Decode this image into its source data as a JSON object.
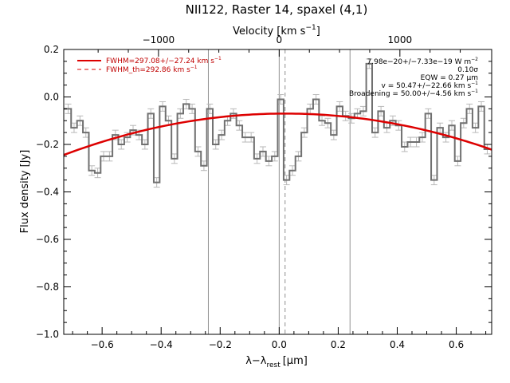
{
  "title": "NII122, Raster 14, spaxel (4,1)",
  "chart_data": {
    "type": "line",
    "title": "NII122, Raster 14, spaxel (4,1)",
    "xlabel_main": "λ−λ",
    "xlabel_sub": "rest",
    "xlabel_unit": "[μm]",
    "ylabel": "Flux density [Jy]",
    "top_axis_label_main": "Velocity [km s",
    "top_axis_label_sup": "−1",
    "top_axis_label_end": "]",
    "xlim": [
      -0.73,
      0.72
    ],
    "ylim": [
      -1.0,
      0.2
    ],
    "x_ticks": [
      -0.6,
      -0.4,
      -0.2,
      0.0,
      0.2,
      0.4,
      0.6
    ],
    "x_tick_labels": [
      "−0.6",
      "−0.4",
      "−0.2",
      "0.0",
      "0.2",
      "0.4",
      "0.6"
    ],
    "y_ticks": [
      -1.0,
      -0.8,
      -0.6,
      -0.4,
      -0.2,
      0.0,
      0.2
    ],
    "y_tick_labels": [
      "−1.0",
      "−0.8",
      "−0.6",
      "−0.4",
      "−0.2",
      "0.0",
      "0.2"
    ],
    "top_ticks_velocity": [
      -1000,
      0,
      1000
    ],
    "top_tick_labels": [
      "−1000",
      "0",
      "1000"
    ],
    "velocity_per_micron": 2445,
    "step_series": {
      "name": "spectrum",
      "color": "#707070",
      "x": [
        -0.715,
        -0.695,
        -0.675,
        -0.655,
        -0.635,
        -0.615,
        -0.595,
        -0.575,
        -0.555,
        -0.535,
        -0.515,
        -0.495,
        -0.475,
        -0.455,
        -0.435,
        -0.415,
        -0.395,
        -0.375,
        -0.355,
        -0.335,
        -0.315,
        -0.295,
        -0.275,
        -0.255,
        -0.235,
        -0.215,
        -0.195,
        -0.175,
        -0.155,
        -0.135,
        -0.115,
        -0.095,
        -0.075,
        -0.055,
        -0.035,
        -0.015,
        0.005,
        0.025,
        0.045,
        0.065,
        0.085,
        0.105,
        0.125,
        0.145,
        0.165,
        0.185,
        0.205,
        0.225,
        0.245,
        0.265,
        0.285,
        0.305,
        0.325,
        0.345,
        0.365,
        0.385,
        0.405,
        0.425,
        0.445,
        0.465,
        0.485,
        0.505,
        0.525,
        0.545,
        0.565,
        0.585,
        0.605,
        0.625,
        0.645,
        0.665,
        0.685,
        0.705
      ],
      "y": [
        -0.05,
        -0.13,
        -0.1,
        -0.15,
        -0.31,
        -0.32,
        -0.25,
        -0.25,
        -0.16,
        -0.2,
        -0.17,
        -0.14,
        -0.16,
        -0.2,
        -0.07,
        -0.36,
        -0.04,
        -0.1,
        -0.26,
        -0.07,
        -0.03,
        -0.05,
        -0.23,
        -0.29,
        -0.05,
        -0.2,
        -0.16,
        -0.1,
        -0.07,
        -0.12,
        -0.17,
        -0.17,
        -0.26,
        -0.23,
        -0.27,
        -0.25,
        -0.01,
        -0.35,
        -0.31,
        -0.25,
        -0.15,
        -0.05,
        -0.01,
        -0.1,
        -0.11,
        -0.16,
        -0.04,
        -0.08,
        -0.09,
        -0.07,
        -0.06,
        0.14,
        -0.15,
        -0.06,
        -0.13,
        -0.1,
        -0.12,
        -0.21,
        -0.19,
        -0.19,
        -0.17,
        -0.07,
        -0.35,
        -0.13,
        -0.17,
        -0.12,
        -0.27,
        -0.11,
        -0.05,
        -0.13,
        -0.04,
        -0.22
      ],
      "error": [
        0.02,
        0.02,
        0.02,
        0.02,
        0.02,
        0.02,
        0.02,
        0.02,
        0.02,
        0.02,
        0.02,
        0.02,
        0.02,
        0.02,
        0.02,
        0.02,
        0.02,
        0.02,
        0.02,
        0.02,
        0.02,
        0.02,
        0.02,
        0.02,
        0.02,
        0.02,
        0.02,
        0.02,
        0.02,
        0.02,
        0.02,
        0.02,
        0.02,
        0.02,
        0.02,
        0.02,
        0.02,
        0.02,
        0.02,
        0.02,
        0.02,
        0.02,
        0.02,
        0.02,
        0.02,
        0.02,
        0.02,
        0.02,
        0.02,
        0.02,
        0.02,
        0.02,
        0.02,
        0.02,
        0.02,
        0.02,
        0.02,
        0.02,
        0.02,
        0.02,
        0.02,
        0.02,
        0.02,
        0.02,
        0.02,
        0.02,
        0.02,
        0.02,
        0.02,
        0.02,
        0.02,
        0.02
      ]
    },
    "fit_curve": {
      "color": "#dd0000",
      "center": 0.02,
      "peak": -0.07,
      "coef": 0.31,
      "x_start": -0.73,
      "x_end": 0.72
    },
    "vertical_lines": [
      {
        "x": -0.24,
        "style": "solid",
        "color": "#909090"
      },
      {
        "x": 0.0,
        "style": "solid",
        "color": "#909090"
      },
      {
        "x": 0.02,
        "style": "dashed",
        "color": "#909090"
      },
      {
        "x": 0.24,
        "style": "solid",
        "color": "#909090"
      }
    ],
    "legend": {
      "placement": "top-left",
      "entries": [
        {
          "label": "FWHM=297.08+/−27.24 km s",
          "sup": "−1",
          "style": "solid"
        },
        {
          "label": "FWHM_th=292.86 km s",
          "sup": "−1",
          "style": "dashed"
        }
      ]
    },
    "annotations": [
      {
        "text": "7.98e−20+/−7.33e−19 W m",
        "sup": "−2"
      },
      {
        "text": "0.10σ",
        "sup": ""
      },
      {
        "text": "EQW = 0.27 μm",
        "sup": ""
      },
      {
        "text": "v = 50.47+/−22.66 km s",
        "sup": "−1"
      },
      {
        "text": "Broadening = 50.00+/−4.56 km s",
        "sup": "−1"
      }
    ]
  }
}
